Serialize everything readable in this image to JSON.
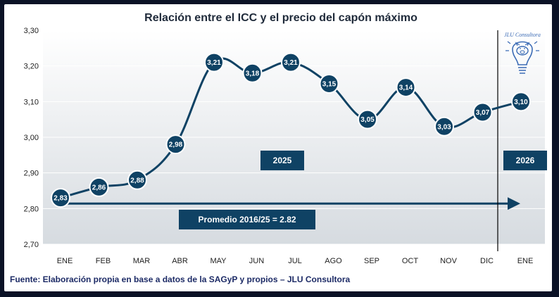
{
  "colors": {
    "line": "#0f4264",
    "marker_fill": "#0f4264",
    "marker_stroke": "#ffffff",
    "box_fill": "#0f4264",
    "avg_line": "#0f4264",
    "footnote": "#1d2b66",
    "plot_bg_top": "#ffffff",
    "plot_bg_bottom": "#d6dbe0"
  },
  "chart_data": {
    "type": "line",
    "title": "Relación entre el ICC y el precio del capón máximo",
    "categories": [
      "ENE",
      "FEB",
      "MAR",
      "ABR",
      "MAY",
      "JUN",
      "JUL",
      "AGO",
      "SEP",
      "OCT",
      "NOV",
      "DIC",
      "ENE"
    ],
    "values": [
      2.83,
      2.86,
      2.88,
      2.98,
      3.21,
      3.18,
      3.21,
      3.15,
      3.05,
      3.14,
      3.03,
      3.07,
      3.1
    ],
    "data_labels": [
      "2,83",
      "2,86",
      "2,88",
      "2,98",
      "3,21",
      "3,18",
      "3,21",
      "3,15",
      "3,05",
      "3,14",
      "3,03",
      "3,07",
      "3,10"
    ],
    "ylim": [
      2.7,
      3.3
    ],
    "yticks": [
      "2,70",
      "2,80",
      "2,90",
      "3,00",
      "3,10",
      "3,20",
      "3,30"
    ],
    "ytick_values": [
      2.7,
      2.8,
      2.9,
      3.0,
      3.1,
      3.2,
      3.3
    ],
    "grid": true,
    "average": {
      "value": 2.82,
      "label": "Promedio 2016/25 = 2.82"
    },
    "year_labels": [
      "2025",
      "2026"
    ],
    "separator_before_category": 12
  },
  "footnote": "Fuente: Elaboración propia en base a datos de la SAGyP y propios – JLU Consultora",
  "logo": {
    "text": "JLU Consultora",
    "icon": "pig-lightbulb-icon"
  }
}
